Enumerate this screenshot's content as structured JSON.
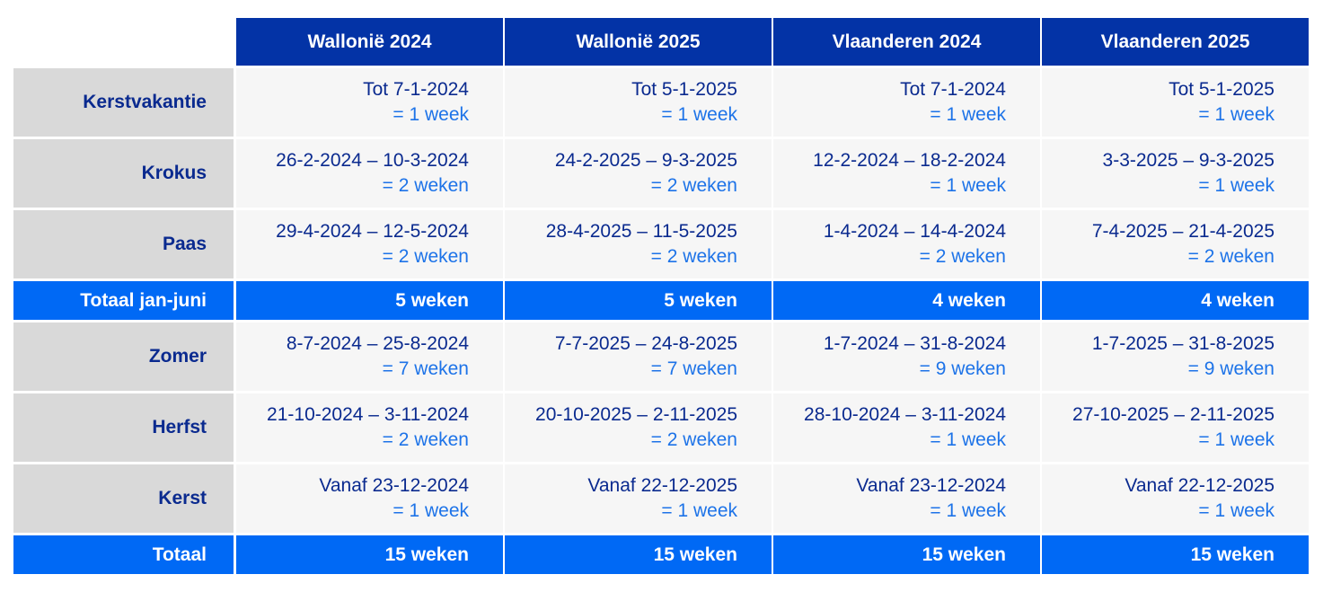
{
  "headers": [
    "Wallonië 2024",
    "Wallonië 2025",
    "Vlaanderen 2024",
    "Vlaanderen 2025"
  ],
  "rows": [
    {
      "type": "period",
      "label": "Kerstvakantie",
      "cells": [
        {
          "range": "Tot 7-1-2024",
          "duration": "= 1 week"
        },
        {
          "range": "Tot 5-1-2025",
          "duration": "= 1 week"
        },
        {
          "range": "Tot 7-1-2024",
          "duration": "= 1 week"
        },
        {
          "range": "Tot 5-1-2025",
          "duration": "= 1 week"
        }
      ]
    },
    {
      "type": "period",
      "label": "Krokus",
      "cells": [
        {
          "range": "26-2-2024 – 10-3-2024",
          "duration": "= 2 weken"
        },
        {
          "range": "24-2-2025 – 9-3-2025",
          "duration": "= 2 weken"
        },
        {
          "range": "12-2-2024 – 18-2-2024",
          "duration": "= 1 week"
        },
        {
          "range": "3-3-2025 – 9-3-2025",
          "duration": "= 1 week"
        }
      ]
    },
    {
      "type": "period",
      "label": "Paas",
      "cells": [
        {
          "range": "29-4-2024 – 12-5-2024",
          "duration": "= 2 weken"
        },
        {
          "range": "28-4-2025 – 11-5-2025",
          "duration": "= 2 weken"
        },
        {
          "range": "1-4-2024 – 14-4-2024",
          "duration": "= 2 weken"
        },
        {
          "range": "7-4-2025 – 21-4-2025",
          "duration": "= 2 weken"
        }
      ]
    },
    {
      "type": "total",
      "label": "Totaal jan-juni",
      "values": [
        "5 weken",
        "5 weken",
        "4 weken",
        "4 weken"
      ]
    },
    {
      "type": "period",
      "label": "Zomer",
      "cells": [
        {
          "range": "8-7-2024 – 25-8-2024",
          "duration": "= 7 weken"
        },
        {
          "range": "7-7-2025 – 24-8-2025",
          "duration": "= 7 weken"
        },
        {
          "range": "1-7-2024 – 31-8-2024",
          "duration": "= 9 weken"
        },
        {
          "range": "1-7-2025 – 31-8-2025",
          "duration": "= 9 weken"
        }
      ]
    },
    {
      "type": "period",
      "label": "Herfst",
      "cells": [
        {
          "range": "21-10-2024 – 3-11-2024",
          "duration": "= 2 weken"
        },
        {
          "range": "20-10-2025 – 2-11-2025",
          "duration": "= 2 weken"
        },
        {
          "range": "28-10-2024 – 3-11-2024",
          "duration": "= 1 week"
        },
        {
          "range": "27-10-2025 – 2-11-2025",
          "duration": "= 1 week"
        }
      ]
    },
    {
      "type": "period",
      "label": "Kerst",
      "cells": [
        {
          "range": "Vanaf 23-12-2024",
          "duration": "= 1 week"
        },
        {
          "range": "Vanaf 22-12-2025",
          "duration": "= 1 week"
        },
        {
          "range": "Vanaf 23-12-2024",
          "duration": "= 1 week"
        },
        {
          "range": "Vanaf 22-12-2025",
          "duration": "= 1 week"
        }
      ]
    },
    {
      "type": "total",
      "label": "Totaal",
      "values": [
        "15 weken",
        "15 weken",
        "15 weken",
        "15 weken"
      ]
    }
  ],
  "colors": {
    "header_bg": "#0333a6",
    "total_bg": "#0069f5",
    "label_bg": "#d9d9d9",
    "cell_bg": "#f6f6f6",
    "range_text": "#0a2a8f",
    "duration_text": "#1d73e8"
  }
}
